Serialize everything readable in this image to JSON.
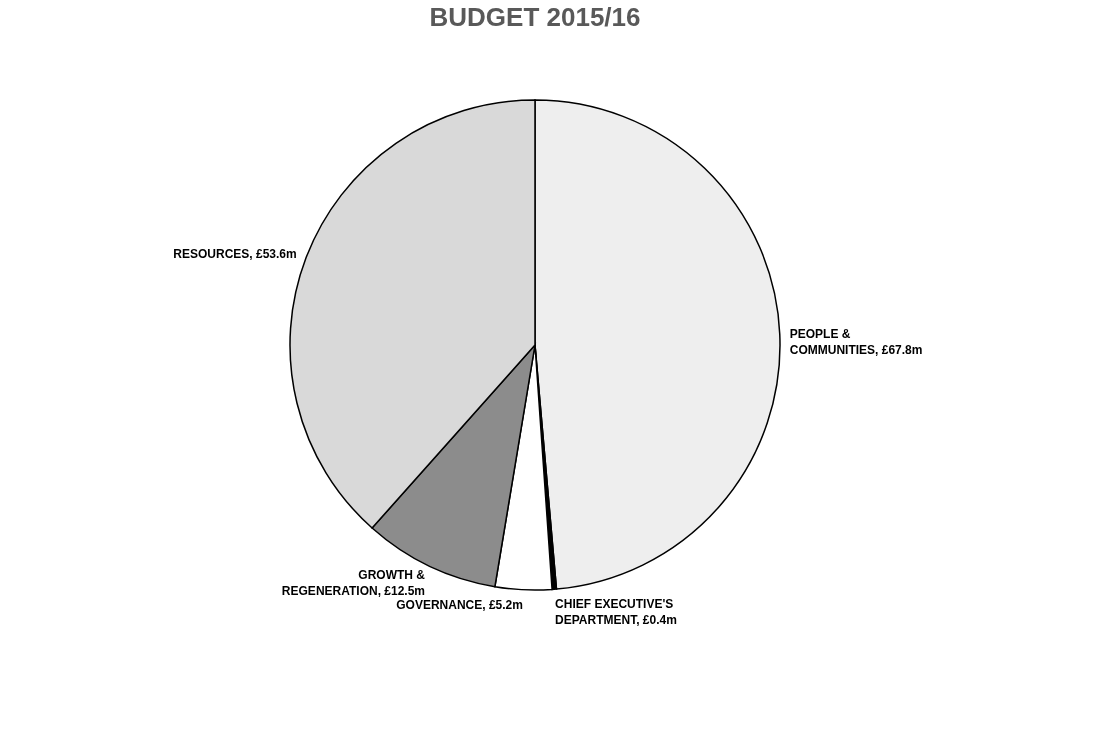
{
  "chart_data": {
    "type": "pie",
    "title": "BUDGET 2015/16",
    "categories": [
      "PEOPLE & COMMUNITIES",
      "CHIEF EXECUTIVE'S DEPARTMENT",
      "GOVERNANCE",
      "GROWTH & REGENERATION",
      "RESOURCES"
    ],
    "values": [
      67.8,
      0.4,
      5.2,
      12.5,
      53.6
    ],
    "value_labels": [
      "£67.8m",
      "£0.4m",
      "£5.2m",
      "£12.5m",
      "£53.6m"
    ],
    "colors": [
      "#eeeeee",
      "#000000",
      "#ffffff",
      "#8c8c8c",
      "#d9d9d9"
    ],
    "legend": false
  }
}
